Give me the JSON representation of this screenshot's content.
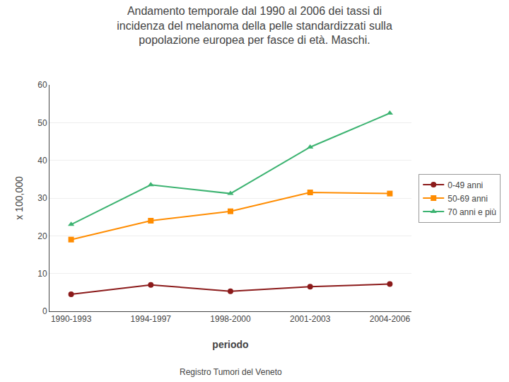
{
  "chart_data": {
    "type": "line",
    "title": "Andamento temporale dal 1990 al 2006 dei tassi di\nincidenza del melanoma della pelle standardizzati sulla\npopolazione europea per fasce di età. Maschi.",
    "xlabel": "periodo",
    "ylabel": "x 100,000",
    "categories": [
      "1990-1993",
      "1994-1997",
      "1998-2000",
      "2001-2003",
      "2004-2006"
    ],
    "series": [
      {
        "name": "0-49 anni",
        "color": "#8B1A1A",
        "marker": "circle",
        "values": [
          4.5,
          7.0,
          5.3,
          6.5,
          7.2
        ]
      },
      {
        "name": "50-69 anni",
        "color": "#FF8C00",
        "marker": "square",
        "values": [
          19.0,
          24.0,
          26.5,
          31.5,
          31.2
        ]
      },
      {
        "name": "70 anni e più",
        "color": "#3CB371",
        "marker": "triangle-up",
        "values": [
          23.0,
          33.5,
          31.2,
          43.5,
          52.5
        ]
      }
    ],
    "ylim": [
      0,
      60
    ],
    "yticks": [
      0,
      10,
      20,
      30,
      40,
      50,
      60
    ],
    "grid": true,
    "legend": "right",
    "annotations": [
      "Registro Tumori del Veneto"
    ]
  }
}
